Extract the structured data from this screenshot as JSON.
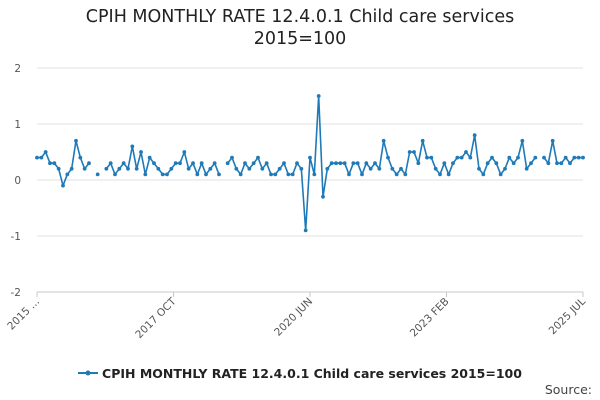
{
  "title_line1": "CPIH MONTHLY RATE 12.4.0.1 Child care services",
  "title_line2": "2015=100",
  "source_label": "Source:",
  "colors": {
    "series": "#1f7ab8",
    "grid": "#e2e2e2",
    "axis": "#c8c8c8"
  },
  "chart_data": {
    "type": "line",
    "title": "CPIH MONTHLY RATE 12.4.0.1 Child care services 2015=100",
    "xlabel": "",
    "ylabel": "",
    "ylim": [
      -2,
      2
    ],
    "yticks": [
      -2,
      -1,
      0,
      1,
      2
    ],
    "grid": true,
    "legend": "bottom",
    "x_start": "2015 JAN",
    "x_end": "2025 JUL",
    "xticks": [
      "2015 ...",
      "2017 OCT",
      "2020 JUN",
      "2023 FEB",
      "2025 JUL"
    ],
    "series": [
      {
        "name": "CPIH MONTHLY RATE 12.4.0.1 Child care services 2015=100",
        "values": [
          0.4,
          0.4,
          0.5,
          0.3,
          0.3,
          0.2,
          -0.1,
          0.1,
          0.2,
          0.7,
          0.4,
          0.2,
          0.3,
          null,
          0.1,
          null,
          0.2,
          0.3,
          0.1,
          0.2,
          0.3,
          0.2,
          0.6,
          0.2,
          0.5,
          0.1,
          0.4,
          0.3,
          0.2,
          0.1,
          0.1,
          0.2,
          0.3,
          0.3,
          0.5,
          0.2,
          0.3,
          0.1,
          0.3,
          0.1,
          0.2,
          0.3,
          0.1,
          null,
          0.3,
          0.4,
          0.2,
          0.1,
          0.3,
          0.2,
          0.3,
          0.4,
          0.2,
          0.3,
          0.1,
          0.1,
          0.2,
          0.3,
          0.1,
          0.1,
          0.3,
          0.2,
          -0.9,
          0.4,
          0.1,
          1.5,
          -0.3,
          0.2,
          0.3,
          0.3,
          0.3,
          0.3,
          0.1,
          0.3,
          0.3,
          0.1,
          0.3,
          0.2,
          0.3,
          0.2,
          0.7,
          0.4,
          0.2,
          0.1,
          0.2,
          0.1,
          0.5,
          0.5,
          0.3,
          0.7,
          0.4,
          0.4,
          0.2,
          0.1,
          0.3,
          0.1,
          0.3,
          0.4,
          0.4,
          0.5,
          0.4,
          0.8,
          0.2,
          0.1,
          0.3,
          0.4,
          0.3,
          0.1,
          0.2,
          0.4,
          0.3,
          0.4,
          0.7,
          0.2,
          0.3,
          0.4,
          null,
          0.4,
          0.3,
          0.7,
          0.3,
          0.3,
          0.4,
          0.3,
          0.4,
          0.4,
          0.4
        ]
      }
    ]
  }
}
